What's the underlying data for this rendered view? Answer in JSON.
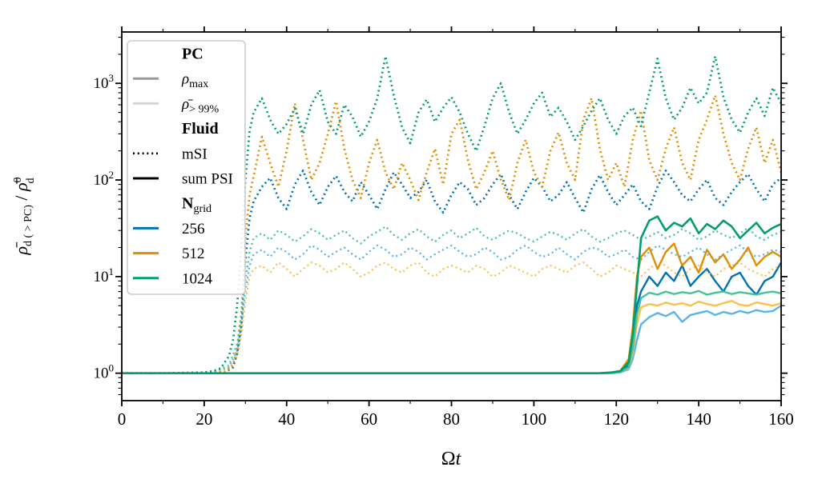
{
  "figure": {
    "background": "#ffffff",
    "spine_color": "#000000"
  },
  "axis_labels": {
    "x_omega": "Ω",
    "x_t": "t",
    "y_rho_left": "ρ̄",
    "y_sub_left": "d ( > PC)",
    "y_slash": " / ",
    "y_rho_right": "ρ̄",
    "y_sup_right": "0",
    "y_sub_right": "d"
  },
  "legend": {
    "border_color": "#cccccc",
    "items": [
      {
        "type": "header",
        "main": "PC"
      },
      {
        "type": "entry",
        "swatch_style": "solid",
        "swatch_color": "#999999",
        "main": "ρ",
        "main_italic": true,
        "sub": "max"
      },
      {
        "type": "entry",
        "swatch_style": "solid",
        "swatch_color": "#d4d4d4",
        "main": "ρ̄",
        "main_italic": true,
        "sub": "> 99%"
      },
      {
        "type": "header",
        "main": "Fluid"
      },
      {
        "type": "entry",
        "swatch_style": "dotted",
        "swatch_color": "#000000",
        "main": "mSI"
      },
      {
        "type": "entry",
        "swatch_style": "solid",
        "swatch_color": "#000000",
        "main": "sum PSI"
      },
      {
        "type": "header",
        "main": "N",
        "sub": "grid"
      },
      {
        "type": "entry",
        "swatch_style": "solid",
        "swatch_color": "#0173b2",
        "main": "256"
      },
      {
        "type": "entry",
        "swatch_style": "solid",
        "swatch_color": "#de8f05",
        "main": "512"
      },
      {
        "type": "entry",
        "swatch_style": "solid",
        "swatch_color": "#029e73",
        "main": "1024"
      }
    ]
  },
  "chart_data": {
    "type": "line",
    "title": "",
    "xlabel": "Ωt",
    "ylabel": "ρ̄_d(>PC) / ρ̄⁰_d",
    "x_scale": "linear",
    "y_scale": "log",
    "xlim": [
      0,
      160
    ],
    "ylim": [
      0.52,
      3400
    ],
    "x_ticks": [
      0,
      20,
      40,
      60,
      80,
      100,
      120,
      140,
      160
    ],
    "x_minor_ticks": [
      10,
      30,
      50,
      70,
      90,
      110,
      130,
      150
    ],
    "y_tick_exponents": [
      0,
      1,
      2,
      3
    ],
    "grid": false,
    "legend_position": "upper left",
    "series": [
      {
        "name": "N=256 mSI rho>99%",
        "color": "#56b4e9",
        "linestyle": "dotted",
        "linewidth": 2.3,
        "pre": {
          "x": [
            0,
            12,
            22,
            26,
            28,
            29,
            30,
            31
          ],
          "y": [
            1,
            1,
            1.01,
            1.15,
            1.7,
            3.2,
            7,
            13
          ]
        },
        "main": {
          "x0": 32,
          "dx": 2,
          "y": [
            17,
            19,
            16,
            20,
            18,
            15,
            17,
            21,
            19,
            16,
            18,
            20,
            17,
            15,
            18,
            21,
            19,
            16,
            17,
            20,
            18,
            15,
            17,
            19,
            21,
            18,
            16,
            17,
            20,
            18,
            15,
            16,
            19,
            21,
            18,
            16,
            17,
            20,
            17,
            15,
            18,
            20,
            19,
            16,
            17,
            19,
            16,
            15,
            18,
            21,
            19,
            17,
            16,
            18,
            20,
            17,
            15,
            17,
            19,
            21,
            18,
            16,
            17,
            19,
            18
          ]
        }
      },
      {
        "name": "N=256 mSI rho_max",
        "color": "#0173b2",
        "linestyle": "dotted",
        "linewidth": 2.7,
        "pre": {
          "x": [
            0,
            10,
            20,
            25,
            27,
            28,
            29,
            30,
            31
          ],
          "y": [
            1,
            1,
            1,
            1.02,
            1.15,
            1.6,
            3,
            15,
            40
          ]
        },
        "main": {
          "x0": 32,
          "dx": 2,
          "y": [
            60,
            85,
            105,
            65,
            50,
            90,
            125,
            75,
            55,
            85,
            110,
            75,
            60,
            95,
            70,
            50,
            80,
            120,
            90,
            65,
            75,
            100,
            60,
            46,
            70,
            95,
            80,
            55,
            65,
            90,
            115,
            70,
            50,
            75,
            105,
            85,
            60,
            70,
            95,
            65,
            46,
            80,
            112,
            75,
            55,
            70,
            90,
            60,
            50,
            85,
            125,
            95,
            70,
            60,
            80,
            100,
            65,
            55,
            75,
            95,
            115,
            80,
            60,
            90,
            105
          ]
        }
      },
      {
        "name": "N=256 sum PSI rho>99%",
        "color": "#56b4e9",
        "linestyle": "solid",
        "linewidth": 2.4,
        "pre": {
          "x": [
            0,
            60,
            110,
            116,
            119,
            121,
            123,
            124,
            125
          ],
          "y": [
            1,
            1,
            1,
            1,
            1,
            1.02,
            1.1,
            1.4,
            2.2
          ]
        },
        "main": {
          "x0": 126,
          "dx": 2,
          "y": [
            3.2,
            3.8,
            4.2,
            3.9,
            4.3,
            3.4,
            4,
            4.2,
            4.4,
            4,
            4.3,
            4.1,
            4.4,
            4.2,
            4.5,
            4.3,
            4.4,
            5
          ]
        }
      },
      {
        "name": "N=256 sum PSI rho_max",
        "color": "#0173b2",
        "linestyle": "solid",
        "linewidth": 2.4,
        "pre": {
          "x": [
            0,
            60,
            110,
            116,
            119,
            121,
            123,
            124,
            125
          ],
          "y": [
            1,
            1,
            1,
            1,
            1.01,
            1.04,
            1.2,
            2,
            5
          ]
        },
        "main": {
          "x0": 126,
          "dx": 2,
          "y": [
            7,
            10,
            8,
            11,
            9,
            13,
            8,
            10,
            12,
            9,
            7,
            10,
            11,
            8,
            6.5,
            9,
            10,
            14
          ]
        }
      },
      {
        "name": "N=512 mSI rho>99%",
        "color": "#fcc04e",
        "linestyle": "dotted",
        "linewidth": 2.3,
        "pre": {
          "x": [
            0,
            12,
            22,
            26,
            28,
            29,
            30,
            31
          ],
          "y": [
            1,
            1,
            1.01,
            1.1,
            1.5,
            2.5,
            5.5,
            10
          ]
        },
        "main": {
          "x0": 32,
          "dx": 2,
          "y": [
            12,
            13,
            11,
            14,
            12,
            10,
            12,
            14,
            13,
            11,
            12,
            14,
            12,
            10,
            11,
            13,
            14,
            12,
            11,
            13,
            14,
            11,
            10,
            12,
            13,
            12,
            11,
            13,
            12,
            10,
            11,
            13,
            12,
            11,
            10,
            12,
            13,
            12,
            11,
            13,
            14,
            12,
            10,
            11,
            13,
            12,
            11,
            10,
            12,
            14,
            13,
            11,
            10,
            12,
            13,
            11,
            10,
            12,
            13,
            14,
            12,
            11,
            10,
            12,
            13
          ]
        }
      },
      {
        "name": "N=512 mSI rho_max",
        "color": "#de8f05",
        "linestyle": "dotted",
        "linewidth": 2.7,
        "pre": {
          "x": [
            0,
            10,
            20,
            25,
            27,
            28,
            29,
            30,
            31
          ],
          "y": [
            1,
            1,
            1,
            1.03,
            1.2,
            1.8,
            4,
            25,
            70
          ]
        },
        "main": {
          "x0": 32,
          "dx": 2,
          "y": [
            110,
            280,
            150,
            85,
            200,
            620,
            260,
            100,
            150,
            300,
            650,
            210,
            100,
            65,
            150,
            260,
            120,
            80,
            150,
            100,
            62,
            120,
            210,
            90,
            300,
            420,
            160,
            80,
            120,
            200,
            100,
            62,
            150,
            260,
            120,
            85,
            200,
            310,
            150,
            100,
            420,
            700,
            210,
            100,
            150,
            85,
            260,
            520,
            160,
            100,
            210,
            350,
            150,
            100,
            260,
            420,
            750,
            300,
            150,
            100,
            210,
            350,
            150,
            260,
            120
          ]
        }
      },
      {
        "name": "N=512 sum PSI rho>99%",
        "color": "#fcc04e",
        "linestyle": "solid",
        "linewidth": 2.4,
        "pre": {
          "x": [
            0,
            60,
            110,
            116,
            119,
            121,
            123,
            124,
            125
          ],
          "y": [
            1,
            1,
            1,
            1,
            1.01,
            1.03,
            1.12,
            1.6,
            3.2
          ]
        },
        "main": {
          "x0": 126,
          "dx": 2,
          "y": [
            4.8,
            5.2,
            5,
            5.4,
            5.1,
            5.3,
            5,
            5.5,
            5.2,
            5,
            5.3,
            5.6,
            5.1,
            5,
            5.4,
            5.2,
            5,
            5.3
          ]
        }
      },
      {
        "name": "N=512 sum PSI rho_max",
        "color": "#de8f05",
        "linestyle": "solid",
        "linewidth": 2.4,
        "pre": {
          "x": [
            0,
            60,
            110,
            116,
            119,
            121,
            123,
            124,
            125
          ],
          "y": [
            1,
            1,
            1,
            1,
            1.02,
            1.06,
            1.4,
            3,
            10
          ]
        },
        "main": {
          "x0": 126,
          "dx": 2,
          "y": [
            16,
            20,
            12,
            18,
            22,
            13,
            16,
            11,
            19,
            14,
            17,
            12,
            15,
            20,
            13,
            16,
            18,
            16
          ]
        }
      },
      {
        "name": "N=1024 mSI rho>99%",
        "color": "#45c39a",
        "linestyle": "dotted",
        "linewidth": 2.3,
        "pre": {
          "x": [
            0,
            12,
            22,
            26,
            28,
            29,
            30,
            31
          ],
          "y": [
            1,
            1,
            1.02,
            1.2,
            2,
            4,
            9,
            18
          ]
        },
        "main": {
          "x0": 32,
          "dx": 2,
          "y": [
            25,
            28,
            24,
            30,
            27,
            23,
            26,
            31,
            28,
            24,
            27,
            30,
            25,
            22,
            26,
            29,
            33,
            27,
            24,
            28,
            31,
            26,
            23,
            27,
            30,
            25,
            28,
            32,
            26,
            24,
            27,
            30,
            28,
            25,
            23,
            26,
            29,
            27,
            24,
            28,
            31,
            26,
            23,
            25,
            28,
            30,
            27,
            24,
            26,
            29,
            25,
            27,
            31,
            28,
            24,
            26,
            30,
            27,
            25,
            28,
            32,
            26,
            24,
            27,
            29
          ]
        }
      },
      {
        "name": "N=1024 mSI rho_max",
        "color": "#029e73",
        "linestyle": "dotted",
        "linewidth": 2.7,
        "pre": {
          "x": [
            0,
            10,
            20,
            22,
            24,
            26,
            27,
            28,
            29,
            30,
            31
          ],
          "y": [
            1,
            1,
            1.02,
            1.05,
            1.12,
            1.5,
            2.2,
            5,
            20,
            100,
            320
          ]
        },
        "main": {
          "x0": 32,
          "dx": 2,
          "y": [
            500,
            700,
            420,
            300,
            380,
            550,
            300,
            600,
            850,
            400,
            300,
            600,
            450,
            280,
            400,
            700,
            1900,
            750,
            350,
            240,
            500,
            680,
            400,
            560,
            720,
            500,
            300,
            200,
            360,
            700,
            1000,
            500,
            300,
            420,
            620,
            800,
            450,
            560,
            400,
            260,
            360,
            520,
            700,
            420,
            300,
            460,
            560,
            360,
            800,
            1800,
            700,
            420,
            560,
            900,
            620,
            800,
            1900,
            720,
            420,
            310,
            500,
            700,
            460,
            900,
            620
          ]
        }
      },
      {
        "name": "N=1024 sum PSI rho>99%",
        "color": "#45c39a",
        "linestyle": "solid",
        "linewidth": 2.4,
        "pre": {
          "x": [
            0,
            60,
            110,
            116,
            119,
            121,
            123,
            124,
            125
          ],
          "y": [
            1,
            1,
            1,
            1,
            1.01,
            1.03,
            1.15,
            1.8,
            4
          ]
        },
        "main": {
          "x0": 126,
          "dx": 2,
          "y": [
            6,
            6.8,
            6.5,
            7,
            6.6,
            6.9,
            6.7,
            7.1,
            6.5,
            6.8,
            7,
            6.6,
            6.9,
            6.7,
            6.5,
            6.8,
            7,
            6.7
          ]
        }
      },
      {
        "name": "N=1024 sum PSI rho_max",
        "color": "#029e73",
        "linestyle": "solid",
        "linewidth": 2.6,
        "pre": {
          "x": [
            0,
            60,
            110,
            116,
            119,
            121,
            123,
            124,
            125
          ],
          "y": [
            1,
            1,
            1,
            1,
            1.02,
            1.05,
            1.3,
            2.5,
            8
          ]
        },
        "main": {
          "x0": 126,
          "dx": 2,
          "y": [
            25,
            38,
            42,
            30,
            36,
            33,
            40,
            28,
            35,
            31,
            38,
            33,
            25,
            30,
            36,
            28,
            32,
            35
          ]
        }
      }
    ]
  }
}
